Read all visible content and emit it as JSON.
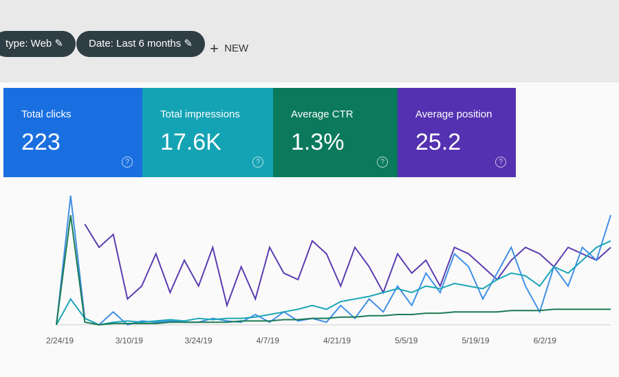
{
  "filters": [
    {
      "label": "type: Web"
    },
    {
      "label": "Date: Last 6 months"
    }
  ],
  "new_button": "NEW",
  "metrics": [
    {
      "label": "Total clicks",
      "value": "223",
      "color": "#1a6fe0"
    },
    {
      "label": "Total impressions",
      "value": "17.6K",
      "color": "#14a3b4"
    },
    {
      "label": "Average CTR",
      "value": "1.3%",
      "color": "#0b7a5c"
    },
    {
      "label": "Average position",
      "value": "25.2",
      "color": "#5431b0"
    }
  ],
  "chart": {
    "type": "line",
    "x_labels": [
      "2/24/19",
      "3/10/19",
      "3/24/19",
      "4/7/19",
      "4/21/19",
      "5/5/19",
      "5/19/19",
      "6/2/19"
    ],
    "series": [
      {
        "color": "#5a3bb0",
        "values": [
          null,
          null,
          78,
          60,
          70,
          20,
          30,
          55,
          25,
          50,
          30,
          60,
          15,
          45,
          20,
          60,
          40,
          35,
          65,
          55,
          30,
          60,
          45,
          25,
          55,
          40,
          50,
          30,
          60,
          55,
          45,
          35,
          50,
          60,
          55,
          45,
          60,
          55,
          50,
          60
        ]
      },
      {
        "color": "#3f8fe6",
        "values": [
          0,
          100,
          5,
          0,
          10,
          0,
          3,
          2,
          3,
          2,
          2,
          5,
          3,
          2,
          8,
          2,
          10,
          3,
          5,
          2,
          15,
          5,
          20,
          10,
          30,
          15,
          40,
          25,
          55,
          45,
          20,
          40,
          60,
          30,
          10,
          45,
          30,
          60,
          50,
          85
        ]
      },
      {
        "color": "#1aa6b8",
        "values": [
          0,
          20,
          5,
          0,
          2,
          3,
          2,
          3,
          4,
          3,
          5,
          4,
          5,
          5,
          6,
          8,
          10,
          12,
          15,
          12,
          18,
          20,
          22,
          25,
          28,
          25,
          30,
          28,
          32,
          30,
          28,
          35,
          40,
          38,
          30,
          45,
          40,
          50,
          60,
          65
        ]
      },
      {
        "color": "#1b7a52",
        "values": [
          0,
          85,
          2,
          0,
          1,
          1,
          1,
          1,
          2,
          2,
          2,
          2,
          2,
          3,
          3,
          3,
          4,
          4,
          5,
          5,
          6,
          6,
          7,
          7,
          8,
          8,
          9,
          9,
          10,
          10,
          10,
          10,
          11,
          11,
          11,
          12,
          12,
          12,
          12,
          12
        ]
      }
    ]
  }
}
